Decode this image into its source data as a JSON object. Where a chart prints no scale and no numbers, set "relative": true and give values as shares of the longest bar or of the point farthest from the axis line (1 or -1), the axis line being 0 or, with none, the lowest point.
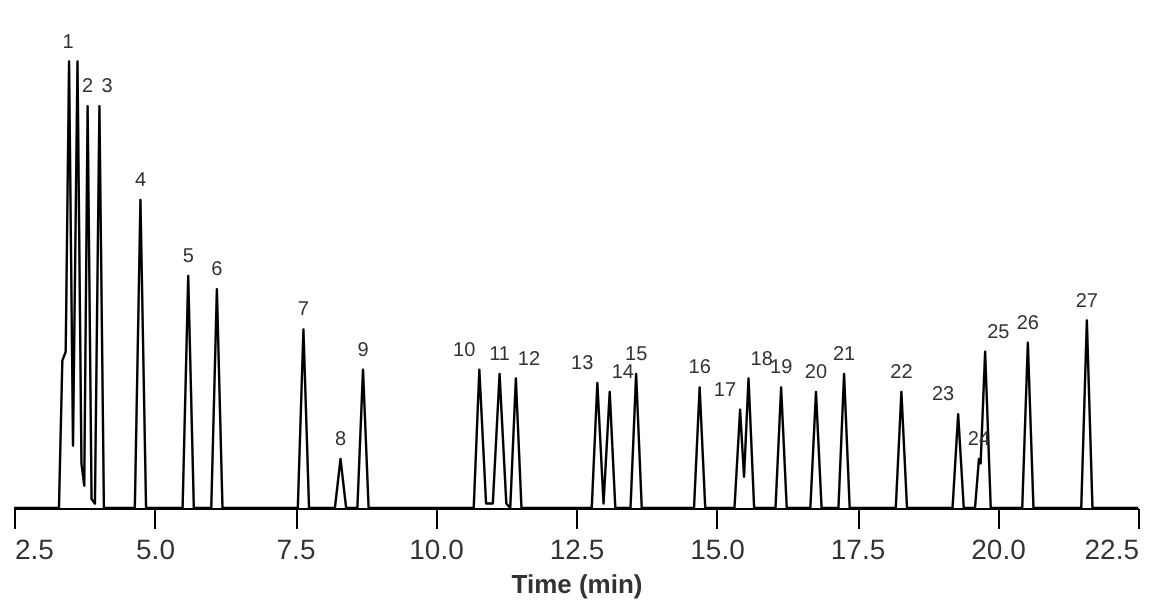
{
  "chart_data": {
    "type": "line",
    "relative": true,
    "xlabel": "Time (min)",
    "color": "#000000",
    "grid": false,
    "marker": "none",
    "line_style": "solid",
    "xlim": [
      2.5,
      22.5
    ],
    "xticks": [
      2.5,
      {
        "value": 5,
        "label": "5.0"
      },
      7.5,
      {
        "value": 10,
        "label": "10.0"
      },
      12.5,
      {
        "value": 15,
        "label": "15.0"
      },
      17.5,
      {
        "value": 20,
        "label": "20.0"
      },
      22.5
    ],
    "x": [
      2.5,
      3.3,
      3.36,
      3.42,
      3.48,
      3.55,
      3.63,
      3.7,
      3.75,
      3.81,
      3.88,
      3.94,
      4.02,
      4.1,
      4.65,
      4.75,
      4.85,
      5.5,
      5.6,
      5.7,
      6.01,
      6.11,
      6.21,
      7.55,
      7.65,
      7.75,
      8.21,
      8.31,
      8.41,
      8.61,
      8.71,
      8.81,
      10.68,
      10.78,
      10.9,
      11.02,
      11.14,
      11.26,
      11.33,
      11.43,
      11.53,
      12.78,
      12.88,
      12.99,
      13.1,
      13.2,
      13.47,
      13.57,
      13.67,
      14.6,
      14.7,
      14.8,
      15.32,
      15.42,
      15.49,
      15.57,
      15.67,
      16.05,
      16.15,
      16.25,
      16.67,
      16.77,
      16.87,
      17.17,
      17.27,
      17.37,
      18.19,
      18.29,
      18.39,
      19.2,
      19.3,
      19.4,
      19.6,
      19.67,
      19.7,
      19.78,
      19.88,
      20.44,
      20.54,
      20.64,
      21.49,
      21.59,
      21.69,
      22.5
    ],
    "values": [
      0,
      0,
      0.33,
      0.35,
      1,
      0.14,
      1,
      0.1,
      0.05,
      0.9,
      0.02,
      0.01,
      0.9,
      0,
      0,
      0.69,
      0,
      0,
      0.52,
      0,
      0,
      0.49,
      0,
      0,
      0.4,
      0,
      0,
      0.11,
      0,
      0,
      0.31,
      0,
      0,
      0.31,
      0.01,
      0.01,
      0.3,
      0.01,
      0,
      0.29,
      0,
      0,
      0.28,
      0.01,
      0.26,
      0,
      0,
      0.3,
      0,
      0,
      0.27,
      0,
      0,
      0.22,
      0.07,
      0.29,
      0,
      0,
      0.27,
      0,
      0,
      0.26,
      0,
      0,
      0.3,
      0,
      0,
      0.26,
      0,
      0,
      0.21,
      0,
      0,
      0.11,
      0.1,
      0.35,
      0,
      0,
      0.37,
      0,
      0,
      0.42,
      0,
      0
    ],
    "annotations": [
      {
        "text": "1",
        "x": 3.63,
        "y": 1
      },
      {
        "text": "2",
        "x": 3.81,
        "y": 0.9
      },
      {
        "text": "3",
        "x": 4.02,
        "y": 0.9
      },
      {
        "text": "4",
        "x": 4.75,
        "y": 0.69
      },
      {
        "text": "5",
        "x": 5.6,
        "y": 0.52
      },
      {
        "text": "6",
        "x": 6.11,
        "y": 0.49
      },
      {
        "text": "7",
        "x": 7.65,
        "y": 0.4
      },
      {
        "text": "8",
        "x": 8.31,
        "y": 0.11
      },
      {
        "text": "9",
        "x": 8.71,
        "y": 0.31
      },
      {
        "text": "10",
        "x": 10.78,
        "y": 0.31
      },
      {
        "text": "11",
        "x": 11.14,
        "y": 0.3
      },
      {
        "text": "12",
        "x": 11.43,
        "y": 0.29
      },
      {
        "text": "13",
        "x": 12.88,
        "y": 0.28
      },
      {
        "text": "14",
        "x": 13.1,
        "y": 0.26
      },
      {
        "text": "15",
        "x": 13.57,
        "y": 0.3
      },
      {
        "text": "16",
        "x": 14.7,
        "y": 0.27
      },
      {
        "text": "17",
        "x": 15.42,
        "y": 0.22
      },
      {
        "text": "18",
        "x": 15.57,
        "y": 0.29
      },
      {
        "text": "19",
        "x": 16.15,
        "y": 0.27
      },
      {
        "text": "20",
        "x": 16.77,
        "y": 0.26
      },
      {
        "text": "21",
        "x": 17.27,
        "y": 0.3
      },
      {
        "text": "22",
        "x": 18.29,
        "y": 0.26
      },
      {
        "text": "23",
        "x": 19.3,
        "y": 0.21
      },
      {
        "text": "24",
        "x": 19.67,
        "y": 0.11
      },
      {
        "text": "25",
        "x": 19.78,
        "y": 0.35
      },
      {
        "text": "26",
        "x": 20.54,
        "y": 0.37
      },
      {
        "text": "27",
        "x": 21.59,
        "y": 0.42
      }
    ]
  }
}
